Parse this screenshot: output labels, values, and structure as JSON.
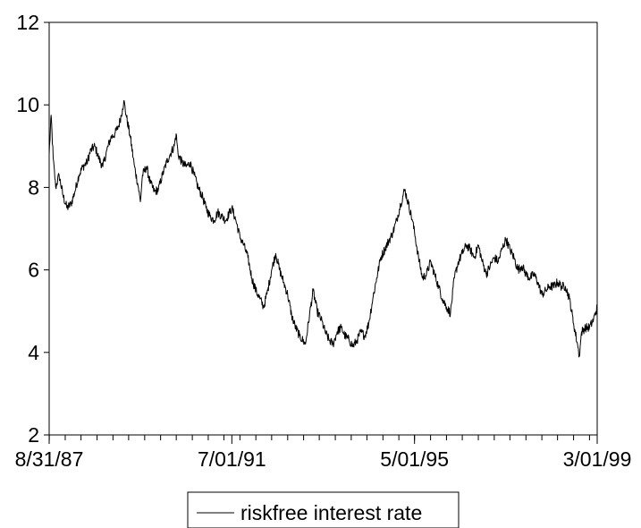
{
  "chart_data": {
    "type": "line",
    "title": "",
    "xlabel": "",
    "ylabel": "",
    "x_tick_labels": [
      "8/31/87",
      "7/01/91",
      "5/01/95",
      "3/01/99"
    ],
    "x_range": [
      "8/31/87",
      "3/01/99"
    ],
    "ylim": [
      2,
      12
    ],
    "y_ticks": [
      2,
      4,
      6,
      8,
      10,
      12
    ],
    "grid": false,
    "legend_position": "bottom-center",
    "series": [
      {
        "name": "riskfree interest rate",
        "color": "#000000",
        "points": [
          [
            "8/31/87",
            8.8
          ],
          [
            "9/15/87",
            9.75
          ],
          [
            "10/01/87",
            8.7
          ],
          [
            "10/20/87",
            8.0
          ],
          [
            "11/15/87",
            8.3
          ],
          [
            "12/15/87",
            7.8
          ],
          [
            "1/15/88",
            7.5
          ],
          [
            "2/15/88",
            7.6
          ],
          [
            "3/15/88",
            7.9
          ],
          [
            "4/15/88",
            8.3
          ],
          [
            "5/15/88",
            8.5
          ],
          [
            "6/15/88",
            8.6
          ],
          [
            "7/15/88",
            8.9
          ],
          [
            "8/15/88",
            9.0
          ],
          [
            "9/15/88",
            8.7
          ],
          [
            "10/15/88",
            8.5
          ],
          [
            "11/15/88",
            8.9
          ],
          [
            "12/15/88",
            9.2
          ],
          [
            "1/15/89",
            9.3
          ],
          [
            "2/15/89",
            9.5
          ],
          [
            "3/15/89",
            9.9
          ],
          [
            "3/25/89",
            10.1
          ],
          [
            "4/15/89",
            9.7
          ],
          [
            "5/15/89",
            9.2
          ],
          [
            "6/15/89",
            8.5
          ],
          [
            "7/15/89",
            8.0
          ],
          [
            "7/30/89",
            7.65
          ],
          [
            "8/15/89",
            8.3
          ],
          [
            "9/15/89",
            8.5
          ],
          [
            "10/15/89",
            8.1
          ],
          [
            "11/15/89",
            7.9
          ],
          [
            "12/15/89",
            7.95
          ],
          [
            "1/15/90",
            8.3
          ],
          [
            "2/15/90",
            8.6
          ],
          [
            "3/15/90",
            8.8
          ],
          [
            "4/15/90",
            9.0
          ],
          [
            "4/30/90",
            9.3
          ],
          [
            "5/15/90",
            8.8
          ],
          [
            "6/15/90",
            8.6
          ],
          [
            "7/15/90",
            8.5
          ],
          [
            "8/15/90",
            8.6
          ],
          [
            "9/15/90",
            8.3
          ],
          [
            "10/15/90",
            8.0
          ],
          [
            "11/15/90",
            7.8
          ],
          [
            "12/15/90",
            7.5
          ],
          [
            "1/15/91",
            7.3
          ],
          [
            "2/15/91",
            7.2
          ],
          [
            "3/15/91",
            7.4
          ],
          [
            "4/15/91",
            7.3
          ],
          [
            "5/15/91",
            7.2
          ],
          [
            "6/15/91",
            7.4
          ],
          [
            "7/01/91",
            7.5
          ],
          [
            "8/01/91",
            7.2
          ],
          [
            "9/01/91",
            6.8
          ],
          [
            "10/01/91",
            6.6
          ],
          [
            "11/01/91",
            6.3
          ],
          [
            "12/01/91",
            5.8
          ],
          [
            "1/01/92",
            5.5
          ],
          [
            "2/01/92",
            5.3
          ],
          [
            "3/01/92",
            5.1
          ],
          [
            "4/01/92",
            5.5
          ],
          [
            "5/01/92",
            6.0
          ],
          [
            "6/01/92",
            6.4
          ],
          [
            "7/01/92",
            6.0
          ],
          [
            "8/01/92",
            5.7
          ],
          [
            "9/01/92",
            5.4
          ],
          [
            "10/01/92",
            4.9
          ],
          [
            "11/01/92",
            4.6
          ],
          [
            "12/01/92",
            4.4
          ],
          [
            "1/15/93",
            4.2
          ],
          [
            "2/15/93",
            4.9
          ],
          [
            "3/15/93",
            5.5
          ],
          [
            "4/15/93",
            5.0
          ],
          [
            "5/15/93",
            4.8
          ],
          [
            "6/15/93",
            4.5
          ],
          [
            "7/15/93",
            4.3
          ],
          [
            "8/15/93",
            4.2
          ],
          [
            "9/15/93",
            4.5
          ],
          [
            "10/15/93",
            4.6
          ],
          [
            "11/15/93",
            4.4
          ],
          [
            "12/15/93",
            4.3
          ],
          [
            "1/15/94",
            4.15
          ],
          [
            "2/15/94",
            4.3
          ],
          [
            "3/15/94",
            4.5
          ],
          [
            "4/15/94",
            4.4
          ],
          [
            "5/15/94",
            4.7
          ],
          [
            "6/15/94",
            5.3
          ],
          [
            "7/15/94",
            5.8
          ],
          [
            "8/15/94",
            6.3
          ],
          [
            "9/15/94",
            6.5
          ],
          [
            "10/15/94",
            6.7
          ],
          [
            "11/15/94",
            6.9
          ],
          [
            "12/15/94",
            7.2
          ],
          [
            "1/15/95",
            7.6
          ],
          [
            "2/15/95",
            7.95
          ],
          [
            "3/15/95",
            7.6
          ],
          [
            "4/15/95",
            7.2
          ],
          [
            "5/01/95",
            6.9
          ],
          [
            "6/01/95",
            6.3
          ],
          [
            "7/01/95",
            5.8
          ],
          [
            "8/01/95",
            5.9
          ],
          [
            "9/01/95",
            6.2
          ],
          [
            "10/01/95",
            5.9
          ],
          [
            "11/01/95",
            5.6
          ],
          [
            "12/01/95",
            5.3
          ],
          [
            "1/01/96",
            5.1
          ],
          [
            "2/01/96",
            4.95
          ],
          [
            "3/01/96",
            5.8
          ],
          [
            "4/01/96",
            6.2
          ],
          [
            "5/01/96",
            6.4
          ],
          [
            "6/01/96",
            6.6
          ],
          [
            "7/01/96",
            6.5
          ],
          [
            "8/01/96",
            6.3
          ],
          [
            "9/01/96",
            6.6
          ],
          [
            "10/01/96",
            6.2
          ],
          [
            "11/01/96",
            5.9
          ],
          [
            "12/01/96",
            6.1
          ],
          [
            "1/01/97",
            6.3
          ],
          [
            "2/01/97",
            6.2
          ],
          [
            "3/01/97",
            6.5
          ],
          [
            "4/01/97",
            6.75
          ],
          [
            "5/01/97",
            6.5
          ],
          [
            "6/01/97",
            6.3
          ],
          [
            "7/01/97",
            6.0
          ],
          [
            "8/01/97",
            6.1
          ],
          [
            "9/01/97",
            5.9
          ],
          [
            "10/01/97",
            5.8
          ],
          [
            "11/01/97",
            5.9
          ],
          [
            "12/01/97",
            5.7
          ],
          [
            "1/01/98",
            5.4
          ],
          [
            "2/01/98",
            5.5
          ],
          [
            "3/01/98",
            5.6
          ],
          [
            "4/01/98",
            5.6
          ],
          [
            "5/01/98",
            5.7
          ],
          [
            "6/01/98",
            5.6
          ],
          [
            "7/01/98",
            5.6
          ],
          [
            "8/01/98",
            5.3
          ],
          [
            "9/01/98",
            4.7
          ],
          [
            "10/01/98",
            4.2
          ],
          [
            "10/15/98",
            3.9
          ],
          [
            "11/01/98",
            4.5
          ],
          [
            "12/01/98",
            4.6
          ],
          [
            "1/01/99",
            4.6
          ],
          [
            "2/01/99",
            4.8
          ],
          [
            "3/01/99",
            5.1
          ]
        ]
      }
    ]
  }
}
